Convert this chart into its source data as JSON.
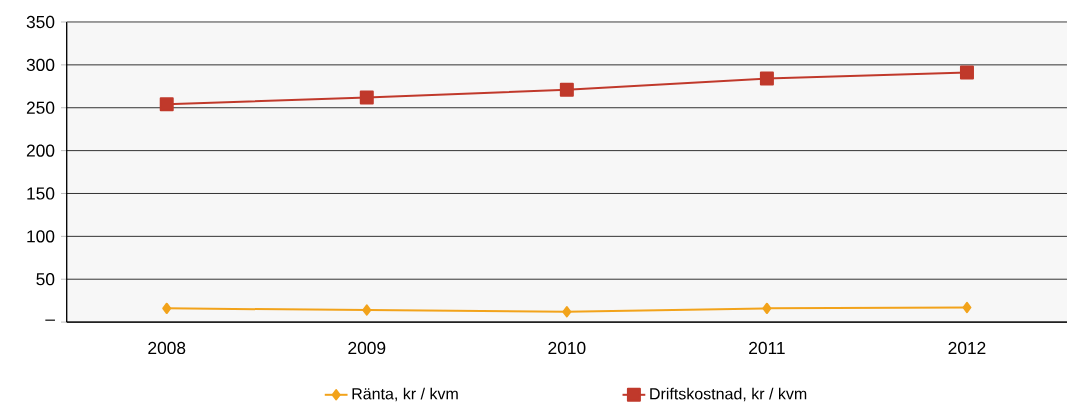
{
  "chart_data": {
    "type": "line",
    "categories": [
      "2008",
      "2009",
      "2010",
      "2011",
      "2012"
    ],
    "series": [
      {
        "name": "Ränta, kr / kvm",
        "color": "#f2a31b",
        "marker": "diamond",
        "values": [
          16,
          14,
          12,
          16,
          17
        ]
      },
      {
        "name": "Driftskostnad, kr / kvm",
        "color": "#c0392b",
        "marker": "square",
        "values": [
          254,
          262,
          271,
          284,
          291
        ]
      }
    ],
    "ylim": [
      0,
      350
    ],
    "yticks": [
      {
        "value": 0,
        "label": "–"
      },
      50,
      100,
      150,
      200,
      250,
      300,
      350
    ],
    "grid": "y",
    "legend": "bottom",
    "line_style": "solid"
  }
}
